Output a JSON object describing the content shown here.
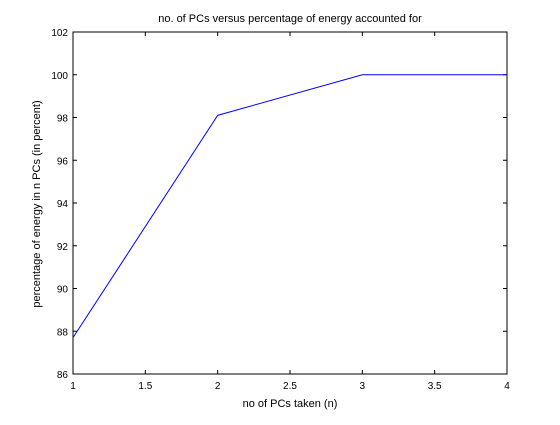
{
  "chart_data": {
    "type": "line",
    "title": "no. of PCs versus percentage of energy accounted for",
    "xlabel": "no of PCs taken (n)",
    "ylabel": "percentage of energy in n PCs (in percent)",
    "xlim": [
      1,
      4
    ],
    "ylim": [
      86,
      102
    ],
    "xticks": [
      "1",
      "1.5",
      "2",
      "2.5",
      "3",
      "3.5",
      "4"
    ],
    "yticks": [
      "86",
      "88",
      "90",
      "92",
      "94",
      "96",
      "98",
      "100",
      "102"
    ],
    "grid": false,
    "legend": "none",
    "series": [
      {
        "color": "#0000ff",
        "x": [
          1,
          2,
          3,
          4
        ],
        "y": [
          87.7,
          98.1,
          100,
          100
        ]
      }
    ]
  }
}
